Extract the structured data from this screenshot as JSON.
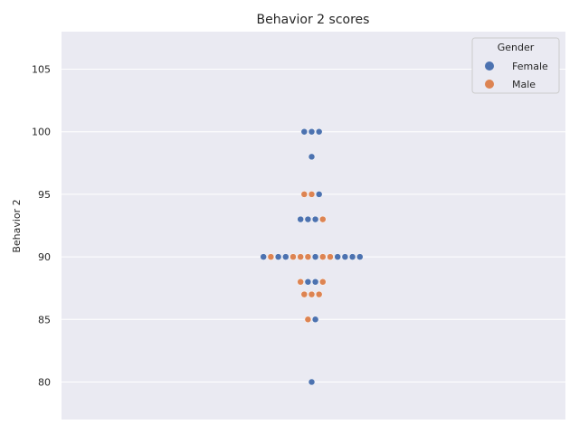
{
  "chart_data": {
    "type": "scatter",
    "subtype": "swarm",
    "title": "Behavior 2 scores",
    "xlabel": "",
    "ylabel": "Behavior 2",
    "ylim": [
      77,
      108
    ],
    "yticks": [
      80,
      85,
      90,
      95,
      100,
      105
    ],
    "grid": true,
    "legend": {
      "title": "Gender",
      "placement": "top-right",
      "entries": [
        {
          "label": "Female",
          "color": "#4c72b0"
        },
        {
          "label": "Male",
          "color": "#dd8452"
        }
      ]
    },
    "series": [
      {
        "name": "Female",
        "color": "#4c72b0",
        "values": [
          100,
          100,
          100,
          98,
          95,
          93,
          93,
          93,
          90,
          90,
          90,
          90,
          90,
          90,
          90,
          90,
          88,
          88,
          85,
          80
        ]
      },
      {
        "name": "Male",
        "color": "#dd8452",
        "values": [
          95,
          95,
          93,
          90,
          90,
          90,
          90,
          90,
          90,
          88,
          88,
          87,
          87,
          87,
          85
        ]
      }
    ],
    "rows": [
      {
        "y": 100,
        "groups": [
          "Female",
          "Female",
          "Female"
        ]
      },
      {
        "y": 98,
        "groups": [
          "Female"
        ]
      },
      {
        "y": 95,
        "groups": [
          "Male",
          "Male",
          "Female"
        ]
      },
      {
        "y": 93,
        "groups": [
          "Female",
          "Female",
          "Female",
          "Male"
        ]
      },
      {
        "y": 90,
        "groups": [
          "Female",
          "Male",
          "Female",
          "Female",
          "Male",
          "Male",
          "Male",
          "Female",
          "Male",
          "Male",
          "Female",
          "Female",
          "Female",
          "Female"
        ]
      },
      {
        "y": 88,
        "groups": [
          "Male",
          "Female",
          "Female",
          "Male"
        ]
      },
      {
        "y": 87,
        "groups": [
          "Male",
          "Male",
          "Male"
        ]
      },
      {
        "y": 85,
        "groups": [
          "Male",
          "Female"
        ]
      },
      {
        "y": 80,
        "groups": [
          "Female"
        ]
      }
    ]
  }
}
